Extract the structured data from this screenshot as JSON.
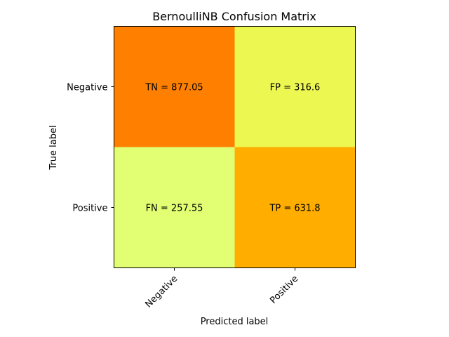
{
  "chart_data": {
    "type": "heatmap",
    "title": "BernoulliNB Confusion Matrix",
    "xlabel": "Predicted label",
    "ylabel": "True label",
    "x_categories": [
      "Negative",
      "Positive"
    ],
    "y_categories": [
      "Negative",
      "Positive"
    ],
    "values": [
      [
        877.05,
        316.6
      ],
      [
        257.55,
        631.8
      ]
    ],
    "cell_labels": [
      [
        "TN = 877.05",
        "FP = 316.6"
      ],
      [
        "FN = 257.55",
        "TP = 631.8"
      ]
    ],
    "cell_colors": [
      [
        "#ff8000",
        "#edf752"
      ],
      [
        "#e2ff73",
        "#ffae00"
      ]
    ],
    "colormap": "Wistia"
  }
}
